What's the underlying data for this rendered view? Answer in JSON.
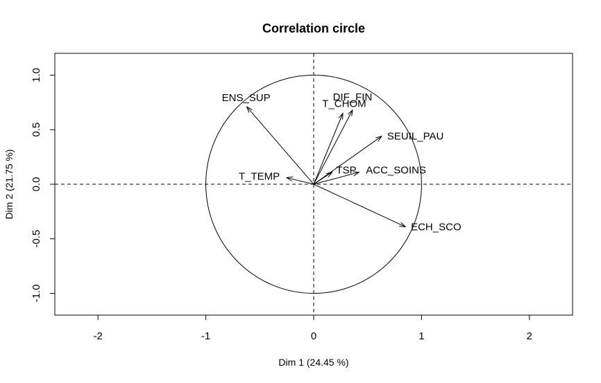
{
  "chart_data": {
    "type": "scatter",
    "title": "Correlation circle",
    "xlabel": "Dim 1 (24.45 %)",
    "ylabel": "Dim 2 (21.75 %)",
    "xlim": [
      -2.4,
      2.4
    ],
    "ylim": [
      -1.2,
      1.2
    ],
    "x_ticks": [
      -2,
      -1,
      0,
      1,
      2
    ],
    "y_ticks": [
      -1.0,
      -0.5,
      0.0,
      0.5,
      1.0
    ],
    "x_tick_labels": [
      "-2",
      "-1",
      "0",
      "1",
      "2"
    ],
    "y_tick_labels": [
      "-1.0",
      "-0.5",
      "0.0",
      "0.5",
      "1.0"
    ],
    "unit_circle": true,
    "reference_lines": [
      0,
      0
    ],
    "variables": [
      {
        "name": "ENS_SUP",
        "x": -0.62,
        "y": 0.71,
        "label_anchor": "end"
      },
      {
        "name": "DIF_FIN",
        "x": 0.36,
        "y": 0.68,
        "label_anchor": "middle"
      },
      {
        "name": "T_CHOM",
        "x": 0.27,
        "y": 0.65,
        "label_anchor": "middle"
      },
      {
        "name": "SEUIL_PAU",
        "x": 0.63,
        "y": 0.44,
        "label_anchor": "start"
      },
      {
        "name": "TSP",
        "x": 0.17,
        "y": 0.11,
        "label_anchor": "start"
      },
      {
        "name": "ACC_SOINS",
        "x": 0.42,
        "y": 0.11,
        "label_anchor": "start"
      },
      {
        "name": "T_TEMP",
        "x": -0.25,
        "y": 0.06,
        "label_anchor": "end"
      },
      {
        "name": "ECH_SCO",
        "x": 0.85,
        "y": -0.39,
        "label_anchor": "start"
      }
    ]
  }
}
